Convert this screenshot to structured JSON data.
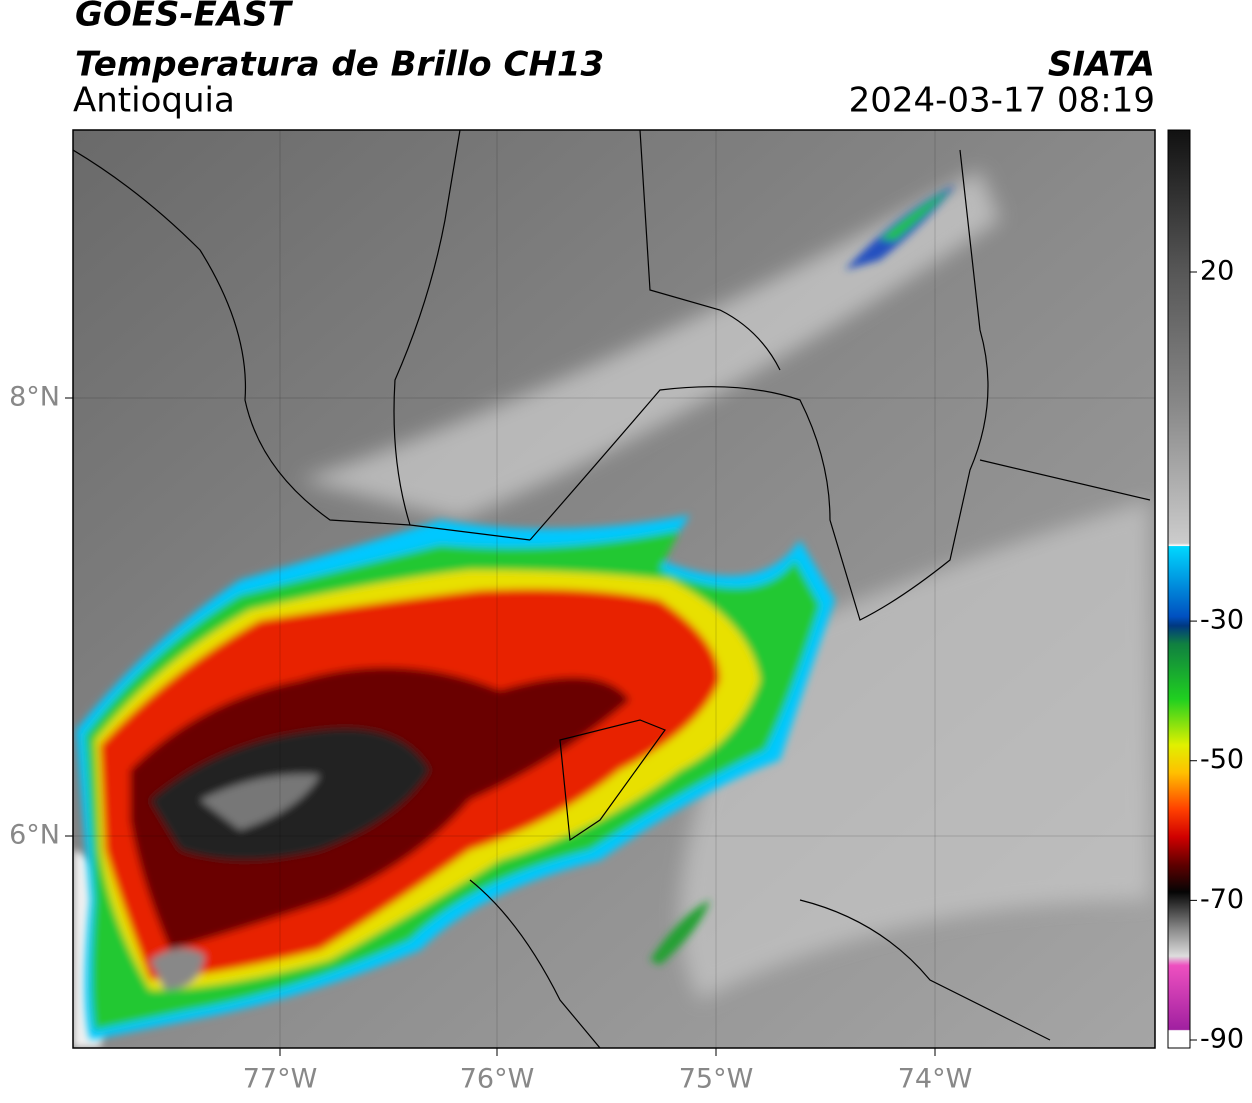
{
  "header": {
    "title": "GOES-EAST",
    "product": "Temperatura de Brillo CH13",
    "region": "Antioquia",
    "credit": "SIATA",
    "datetime": "2024-03-17 08:19"
  },
  "map": {
    "lon_labels": [
      "77°W",
      "76°W",
      "75°W",
      "74°W"
    ],
    "lat_labels": [
      "8°N",
      "6°N"
    ]
  },
  "colorbar": {
    "ticks": [
      20,
      -30,
      -50,
      -70,
      -90
    ]
  }
}
